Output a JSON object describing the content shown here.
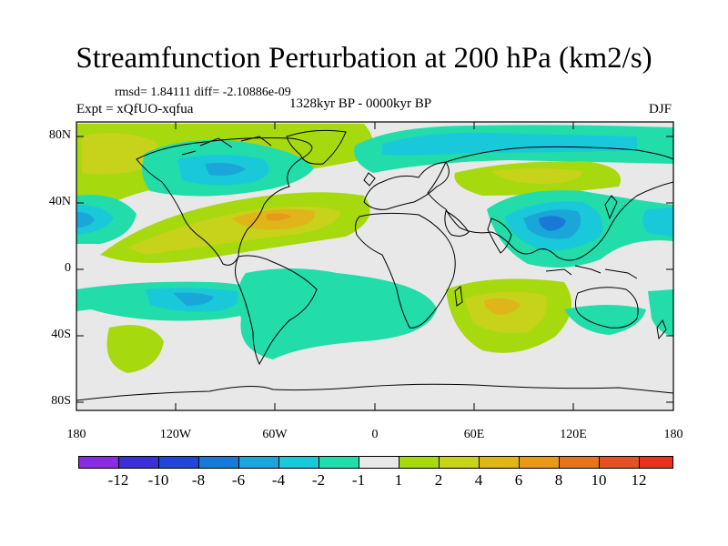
{
  "title": "Streamfunction Perturbation at 200 hPa (km2/s)",
  "stats_text": "rmsd= 1.84111 diff= -2.10886e-09",
  "experiment_text": "Expt = xQfUO-xqfua",
  "period_text": "1328kyr BP - 0000kyr BP",
  "season": "DJF",
  "lat_labels": [
    "80N",
    "40N",
    "0",
    "40S",
    "80S"
  ],
  "lon_labels": [
    "180",
    "120W",
    "60W",
    "0",
    "60E",
    "120E",
    "180"
  ],
  "colorbar": {
    "labels": [
      "-12",
      "-10",
      "-8",
      "-6",
      "-4",
      "-2",
      "-1",
      "1",
      "2",
      "4",
      "6",
      "8",
      "10",
      "12"
    ],
    "colors": [
      "#8a2be2",
      "#3b2fd6",
      "#2446d8",
      "#1a78d6",
      "#1aa6d9",
      "#19c9d9",
      "#22dcaa",
      "#e8e8e8",
      "#a6d90e",
      "#c7d31a",
      "#e0b51a",
      "#e59a1a",
      "#e6741f",
      "#e25226",
      "#e6321f"
    ]
  },
  "colors": {
    "background": "#e8e8e8",
    "coast": "#000000"
  }
}
